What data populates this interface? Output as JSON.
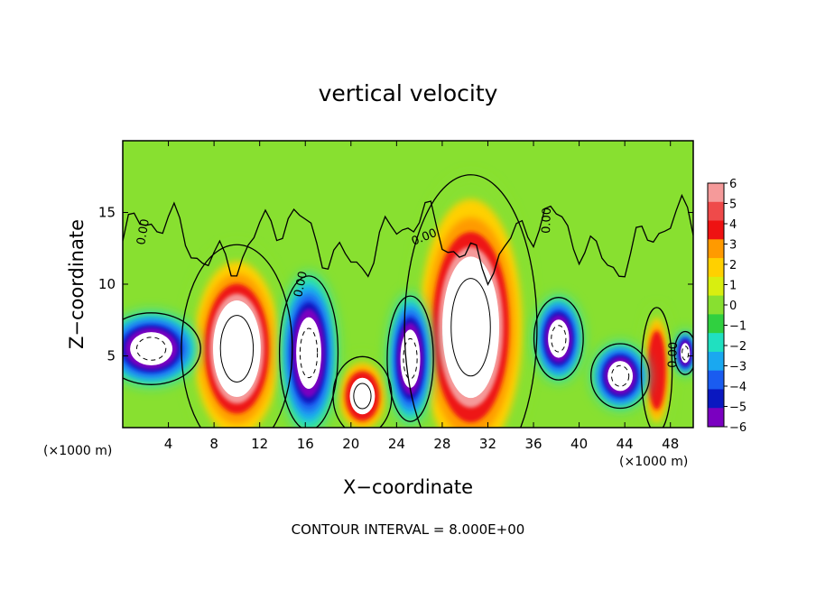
{
  "chart_data": {
    "type": "heatmap",
    "title": "vertical velocity",
    "xlabel": "X−coordinate",
    "ylabel": "Z−coordinate",
    "x_unit_left": "(×1000 m)",
    "x_unit_right": "(×1000 m)",
    "xlim": [
      0,
      50
    ],
    "ylim": [
      0,
      20
    ],
    "x_ticks": [
      4,
      8,
      12,
      16,
      20,
      24,
      28,
      32,
      36,
      40,
      44,
      48
    ],
    "y_ticks": [
      5,
      10,
      15
    ],
    "colorbar": {
      "levels": [
        "6",
        "5",
        "4",
        "3",
        "2",
        "1",
        "0",
        "−1",
        "−2",
        "−3",
        "−4",
        "−5",
        "−6"
      ],
      "colors": [
        "#f59a9a",
        "#ef4a4a",
        "#ee1212",
        "#ff9a00",
        "#ffd000",
        "#d8ee10",
        "#88e030",
        "#30d040",
        "#20e0c0",
        "#1aa8f0",
        "#1a5cf0",
        "#0a18c0",
        "#7a00c0"
      ]
    },
    "contour_labels": [
      "0.00",
      "0.00",
      "0.00",
      "0.00",
      "0.00"
    ],
    "background_color": "#88e030",
    "features": [
      {
        "kind": "updraft",
        "x": 10,
        "z": 5.5,
        "rx": 3.6,
        "rz": 5.8,
        "core": "white",
        "value": 6
      },
      {
        "kind": "updraft",
        "x": 30.5,
        "z": 7,
        "rx": 4.3,
        "rz": 8.5,
        "core": "white",
        "value": 6
      },
      {
        "kind": "updraft",
        "x": 21,
        "z": 2.2,
        "rx": 1.9,
        "rz": 2.2,
        "core": "white",
        "value": 5
      },
      {
        "kind": "updraft",
        "x": 46.8,
        "z": 4,
        "rx": 1.0,
        "rz": 3.5,
        "core": "none",
        "value": 4
      },
      {
        "kind": "downdraft",
        "x": 2.5,
        "z": 5.5,
        "rx": 3.2,
        "rz": 2.0,
        "core": "white",
        "value": -6
      },
      {
        "kind": "downdraft",
        "x": 16.3,
        "z": 5.2,
        "rx": 1.9,
        "rz": 4.3,
        "core": "white",
        "value": -6
      },
      {
        "kind": "downdraft",
        "x": 25.2,
        "z": 4.8,
        "rx": 1.5,
        "rz": 3.5,
        "core": "white",
        "value": -6
      },
      {
        "kind": "downdraft",
        "x": 38.2,
        "z": 6.2,
        "rx": 1.6,
        "rz": 2.3,
        "core": "white",
        "value": -6
      },
      {
        "kind": "downdraft",
        "x": 43.6,
        "z": 3.6,
        "rx": 1.9,
        "rz": 1.8,
        "core": "white",
        "value": -6
      },
      {
        "kind": "downdraft",
        "x": 49.3,
        "z": 5.2,
        "rx": 0.7,
        "rz": 1.2,
        "core": "white",
        "value": -6
      }
    ]
  },
  "footer": {
    "contour_interval": "CONTOUR INTERVAL = 8.000E+00"
  }
}
